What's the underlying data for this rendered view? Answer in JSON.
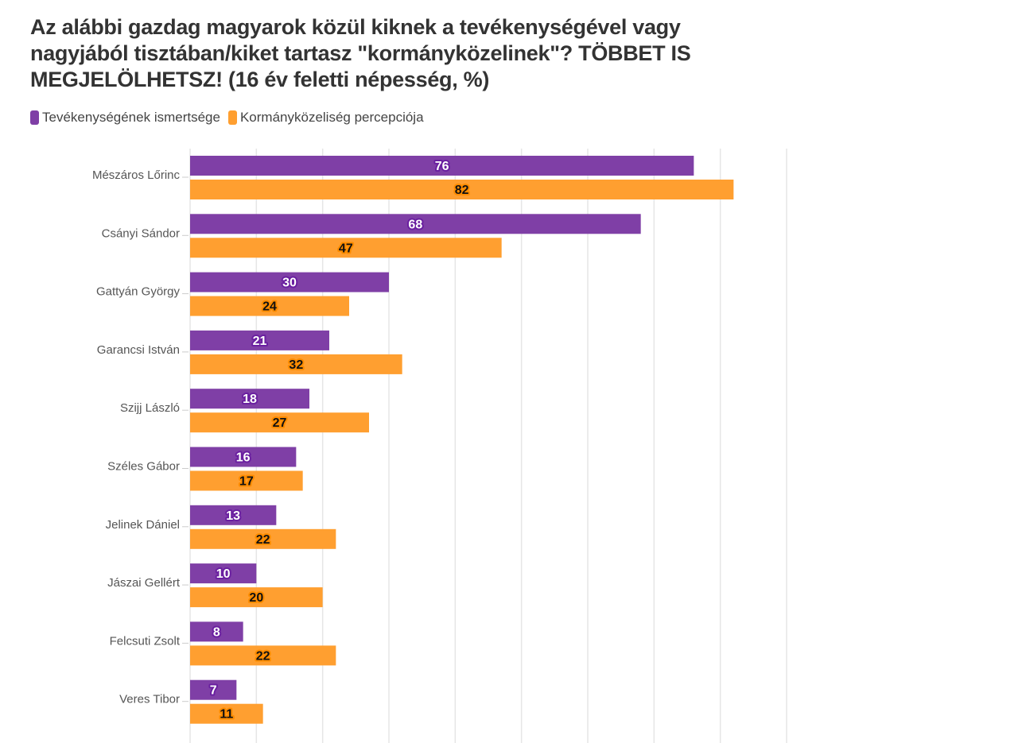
{
  "chart_data": {
    "type": "bar",
    "orientation": "horizontal",
    "title": "Az alábbi gazdag magyarok közül kiknek a tevékenységével vagy nagyjából tisztában/kiket tartasz \"kormányközelinek\"? TÖBBET IS MEGJELÖLHETSZ! (16 év feletti népesség, %)",
    "categories": [
      "Mészáros Lőrinc",
      "Csányi Sándor",
      "Gattyán György",
      "Garancsi István",
      "Szijj László",
      "Széles Gábor",
      "Jelinek Dániel",
      "Jászai Gellért",
      "Felcsuti Zsolt",
      "Veres Tibor"
    ],
    "series": [
      {
        "name": "Tevékenységének ismertsége",
        "color": "#7f3fa6",
        "values": [
          76,
          68,
          30,
          21,
          18,
          16,
          13,
          10,
          8,
          7
        ]
      },
      {
        "name": "Kormányközeliség percepciója",
        "color": "#ff9f30",
        "values": [
          82,
          47,
          24,
          32,
          27,
          17,
          22,
          20,
          22,
          11
        ]
      }
    ],
    "xlim": [
      0,
      90
    ],
    "grid": true,
    "legend": "top-left",
    "data_labels": true
  }
}
